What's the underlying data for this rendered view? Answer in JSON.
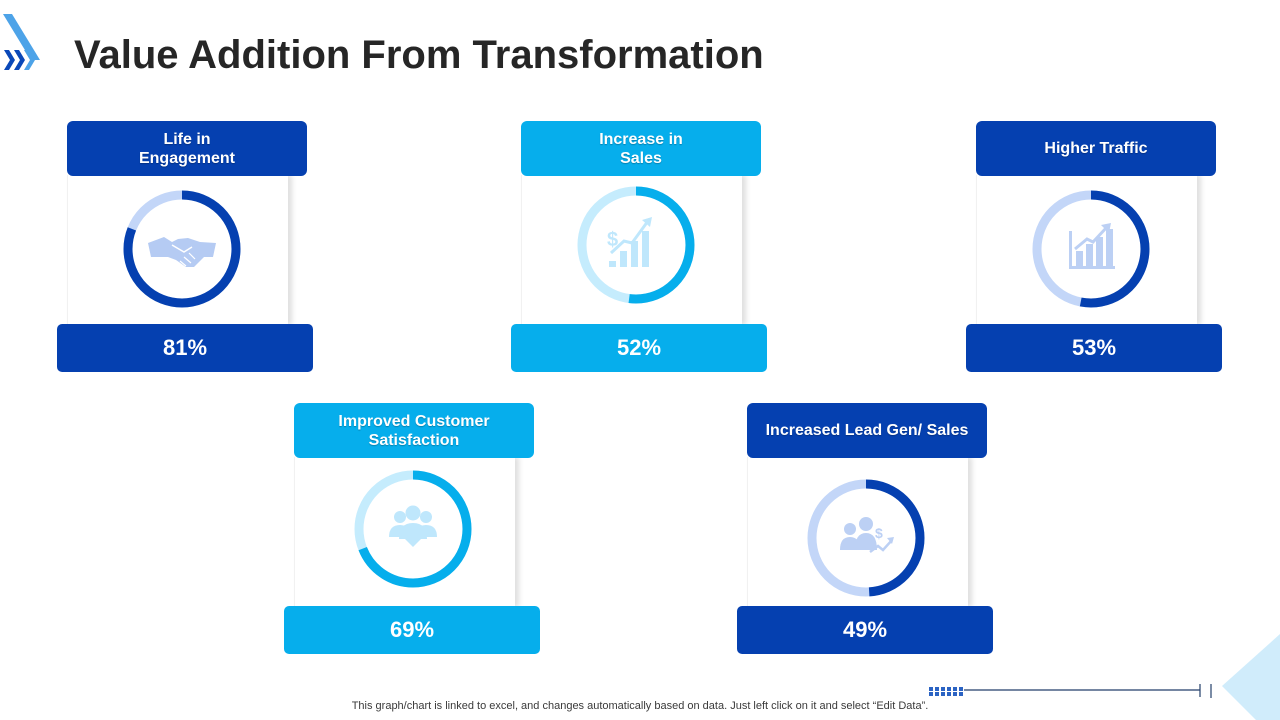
{
  "page": {
    "title": "Value Addition From Transformation"
  },
  "chart_data": {
    "type": "donut",
    "categories": [
      "Life in\nEngagement",
      "Increase in\nSales",
      "Higher Traffic",
      "Improved Customer\nSatisfaction",
      "Increased Lead Gen/ Sales"
    ],
    "values": [
      81,
      52,
      53,
      69,
      49
    ],
    "value_labels": [
      "81%",
      "52%",
      "53%",
      "69%",
      "49%"
    ],
    "icons": [
      "handshake-icon",
      "dollar-growth-chart-icon",
      "bar-chart-growth-icon",
      "customer-group-icon",
      "lead-gen-people-icon"
    ],
    "color_themes": [
      "dark",
      "light",
      "dark",
      "light",
      "dark"
    ],
    "colors": {
      "dark": {
        "accent": "#0540b0",
        "track": "#c3d6f8"
      },
      "light": {
        "accent": "#06aeec",
        "track": "#c5ecfd"
      }
    }
  },
  "footnote": "This graph/chart is linked to excel,  and changes automatically based on data. Just left click on it and select “Edit Data”."
}
